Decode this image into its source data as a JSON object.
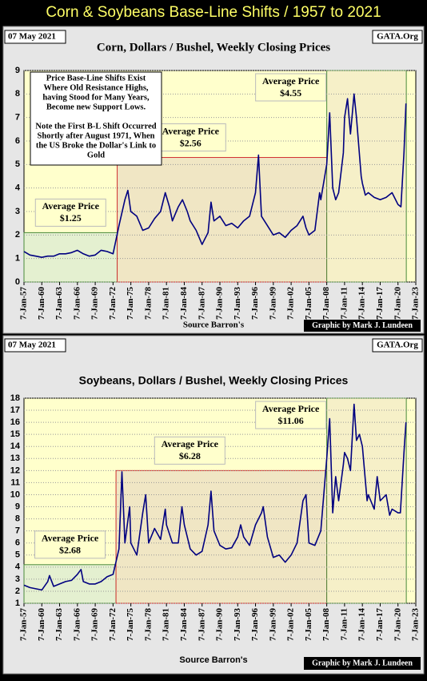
{
  "header": {
    "title": "Corn & Soybeans Base-Line Shifts / 1957 to 2021"
  },
  "chart_data": [
    {
      "type": "line",
      "date": "07 May 2021",
      "site": "GATA.Org",
      "title": "Corn, Dollars / Bushel, Weekly Closing Prices",
      "source": "Source Barron's",
      "credit": "Graphic by Mark J. Lundeen",
      "annotation": [
        "Price Base-Line Shifts Exist",
        "Where Old Resistance Highs,",
        "having Stood for Many Years,",
        "Become new Support Lows.",
        "",
        "Note the First B-L Shift Occurred",
        "Shortly after August 1971, When",
        "the US Broke the Dollar's Link to",
        "Gold"
      ],
      "xlim": [
        1957,
        2023
      ],
      "ylim": [
        0,
        9
      ],
      "yticks": [
        0,
        1,
        2,
        3,
        4,
        5,
        6,
        7,
        8,
        9
      ],
      "grid": true,
      "xticks": [
        {
          "value": 1957,
          "label": "7-Jan-57"
        },
        {
          "value": 1960,
          "label": "7-Jan-60"
        },
        {
          "value": 1963,
          "label": "7-Jan-63"
        },
        {
          "value": 1966,
          "label": "7-Jan-66"
        },
        {
          "value": 1969,
          "label": "7-Jan-69"
        },
        {
          "value": 1972,
          "label": "7-Jan-72"
        },
        {
          "value": 1975,
          "label": "7-Jan-75"
        },
        {
          "value": 1978,
          "label": "7-Jan-78"
        },
        {
          "value": 1981,
          "label": "7-Jan-81"
        },
        {
          "value": 1984,
          "label": "7-Jan-84"
        },
        {
          "value": 1987,
          "label": "7-Jan-87"
        },
        {
          "value": 1990,
          "label": "7-Jan-90"
        },
        {
          "value": 1993,
          "label": "7-Jan-93"
        },
        {
          "value": 1996,
          "label": "7-Jan-96"
        },
        {
          "value": 1999,
          "label": "7-Jan-99"
        },
        {
          "value": 2002,
          "label": "7-Jan-02"
        },
        {
          "value": 2005,
          "label": "7-Jan-05"
        },
        {
          "value": 2008,
          "label": "7-Jan-08"
        },
        {
          "value": 2011,
          "label": "7-Jan-11"
        },
        {
          "value": 2014,
          "label": "7-Jan-14"
        },
        {
          "value": 2017,
          "label": "7-Jan-17"
        },
        {
          "value": 2020,
          "label": "7-Jan-20"
        },
        {
          "value": 2023,
          "label": "7-Jan-23"
        }
      ],
      "regions": [
        {
          "x0": 1957,
          "x1": 1972.7,
          "top": 2.1,
          "fill": "#e4f0d0",
          "stroke": "#4a8a3a",
          "label": "Average Price",
          "value_label": "$1.25"
        },
        {
          "x0": 1972.7,
          "x1": 2008,
          "top": 5.3,
          "fill": "#f0e6c4",
          "stroke": "#d03030",
          "label": "Average Price",
          "value_label": "$2.56"
        },
        {
          "x0": 2008,
          "x1": 2021.4,
          "top": 9,
          "fill": "#f6f0c8",
          "stroke": "#4a8a3a",
          "label": "Average Price",
          "value_label": "$4.55"
        }
      ],
      "x": [
        1957,
        1958,
        1959,
        1960,
        1961,
        1962,
        1963,
        1964,
        1965,
        1966,
        1967,
        1968,
        1969,
        1970,
        1971,
        1972,
        1973,
        1974,
        1974.5,
        1975,
        1976,
        1977,
        1978,
        1979,
        1980,
        1980.8,
        1981.5,
        1982,
        1983,
        1983.7,
        1984.5,
        1985,
        1986,
        1987,
        1988,
        1988.5,
        1989,
        1990,
        1991,
        1992,
        1993,
        1994,
        1995,
        1996,
        1996.5,
        1997,
        1998,
        1999,
        2000,
        2001,
        2002,
        2003,
        2004,
        2004.5,
        2005,
        2006,
        2006.8,
        2007,
        2008,
        2008.5,
        2009,
        2009.5,
        2010,
        2010.8,
        2011,
        2011.5,
        2012,
        2012.6,
        2013,
        2013.8,
        2014,
        2014.5,
        2015,
        2016,
        2017,
        2018,
        2019,
        2020,
        2020.5,
        2021,
        2021.35
      ],
      "series": [
        {
          "color": "#000080",
          "values": [
            1.3,
            1.15,
            1.1,
            1.05,
            1.1,
            1.1,
            1.2,
            1.2,
            1.25,
            1.35,
            1.2,
            1.1,
            1.15,
            1.35,
            1.3,
            1.2,
            2.4,
            3.5,
            3.9,
            3.0,
            2.8,
            2.2,
            2.3,
            2.7,
            3.0,
            3.8,
            3.2,
            2.6,
            3.2,
            3.5,
            3.0,
            2.6,
            2.2,
            1.6,
            2.1,
            3.4,
            2.6,
            2.8,
            2.4,
            2.5,
            2.3,
            2.6,
            2.8,
            3.8,
            5.4,
            2.8,
            2.4,
            2.0,
            2.1,
            1.9,
            2.2,
            2.4,
            2.8,
            2.3,
            2.0,
            2.2,
            3.8,
            3.5,
            5.0,
            7.2,
            4.0,
            3.5,
            3.8,
            5.5,
            7.0,
            7.8,
            6.3,
            8.0,
            7.0,
            4.5,
            4.2,
            3.7,
            3.8,
            3.6,
            3.5,
            3.6,
            3.8,
            3.3,
            3.2,
            5.5,
            7.6
          ]
        }
      ]
    },
    {
      "type": "line",
      "date": "07 May 2021",
      "site": "GATA.Org",
      "title": "Soybeans, Dollars / Bushel, Weekly Closing Prices",
      "source": "Source Barron's",
      "credit": "Graphic by Mark J. Lundeen",
      "xlim": [
        1957,
        2023
      ],
      "ylim": [
        1,
        18
      ],
      "yticks": [
        1,
        2,
        3,
        4,
        5,
        6,
        7,
        8,
        9,
        10,
        11,
        12,
        13,
        14,
        15,
        16,
        17,
        18
      ],
      "grid": true,
      "xticks": [
        {
          "value": 1957,
          "label": "7-Jan-57"
        },
        {
          "value": 1960,
          "label": "7-Jan-60"
        },
        {
          "value": 1963,
          "label": "7-Jan-63"
        },
        {
          "value": 1966,
          "label": "7-Jan-66"
        },
        {
          "value": 1969,
          "label": "7-Jan-69"
        },
        {
          "value": 1972,
          "label": "7-Jan-72"
        },
        {
          "value": 1975,
          "label": "7-Jan-75"
        },
        {
          "value": 1978,
          "label": "7-Jan-78"
        },
        {
          "value": 1981,
          "label": "7-Jan-81"
        },
        {
          "value": 1984,
          "label": "7-Jan-84"
        },
        {
          "value": 1987,
          "label": "7-Jan-87"
        },
        {
          "value": 1990,
          "label": "7-Jan-90"
        },
        {
          "value": 1993,
          "label": "7-Jan-93"
        },
        {
          "value": 1996,
          "label": "7-Jan-96"
        },
        {
          "value": 1999,
          "label": "7-Jan-99"
        },
        {
          "value": 2002,
          "label": "7-Jan-02"
        },
        {
          "value": 2005,
          "label": "7-Jan-05"
        },
        {
          "value": 2008,
          "label": "7-Jan-08"
        },
        {
          "value": 2011,
          "label": "7-Jan-11"
        },
        {
          "value": 2014,
          "label": "7-Jan-14"
        },
        {
          "value": 2017,
          "label": "7-Jan-17"
        },
        {
          "value": 2020,
          "label": "7-Jan-20"
        },
        {
          "value": 2023,
          "label": "7-Jan-23"
        }
      ],
      "regions": [
        {
          "x0": 1957,
          "x1": 1972.5,
          "top": 4.2,
          "fill": "#e4f0d0",
          "stroke": "#4a8a3a",
          "label": "Average Price",
          "value_label": "$2.68"
        },
        {
          "x0": 1972.5,
          "x1": 2008,
          "top": 12,
          "fill": "#f0e6c4",
          "stroke": "#d03030",
          "label": "Average Price",
          "value_label": "$6.28"
        },
        {
          "x0": 2008,
          "x1": 2021.4,
          "top": 18,
          "fill": "#f6f0c8",
          "stroke": "#4a8a3a",
          "label": "Average Price",
          "value_label": "$11.06"
        }
      ],
      "x": [
        1957,
        1958,
        1959,
        1960,
        1961,
        1961.3,
        1962,
        1963,
        1964,
        1965,
        1966,
        1966.6,
        1967,
        1968,
        1969,
        1970,
        1971,
        1972,
        1973,
        1973.5,
        1974,
        1974.8,
        1975,
        1976,
        1977,
        1977.5,
        1978,
        1979,
        1980,
        1980.8,
        1981,
        1982,
        1983,
        1983.6,
        1984,
        1985,
        1986,
        1987,
        1988,
        1988.5,
        1989,
        1990,
        1991,
        1992,
        1993,
        1993.5,
        1994,
        1995,
        1996,
        1997,
        1997.3,
        1998,
        1999,
        2000,
        2001,
        2002,
        2003,
        2004,
        2004.5,
        2005,
        2006,
        2007,
        2007.5,
        2008,
        2008.5,
        2009,
        2009.5,
        2010,
        2010.8,
        2011,
        2011.5,
        2012,
        2012.6,
        2013,
        2013.5,
        2014,
        2014.8,
        2015,
        2016,
        2016.5,
        2017,
        2018,
        2018.6,
        2019,
        2020,
        2020.4,
        2021,
        2021.35
      ],
      "series": [
        {
          "color": "#000080",
          "values": [
            2.5,
            2.3,
            2.2,
            2.1,
            2.8,
            3.3,
            2.4,
            2.6,
            2.8,
            2.9,
            3.4,
            3.8,
            2.8,
            2.6,
            2.6,
            2.8,
            3.2,
            3.4,
            5.5,
            11.9,
            6.0,
            9.0,
            6.0,
            5.0,
            8.5,
            10.0,
            6.0,
            7.2,
            6.3,
            8.8,
            7.5,
            6.0,
            6.0,
            9.0,
            7.5,
            5.5,
            5.0,
            5.3,
            7.5,
            10.3,
            7.0,
            5.8,
            5.5,
            5.6,
            6.5,
            7.5,
            6.5,
            5.8,
            7.5,
            8.5,
            9.0,
            6.5,
            4.8,
            5.0,
            4.4,
            5.0,
            6.0,
            9.5,
            10.0,
            6.0,
            5.8,
            7.0,
            10.0,
            13.0,
            16.3,
            8.5,
            11.5,
            9.5,
            12.5,
            13.5,
            13.0,
            12.0,
            17.5,
            14.5,
            15.0,
            14.0,
            9.5,
            10.0,
            8.8,
            11.5,
            9.5,
            10.0,
            8.3,
            8.8,
            8.5,
            8.5,
            13.5,
            16.0
          ]
        }
      ]
    }
  ]
}
